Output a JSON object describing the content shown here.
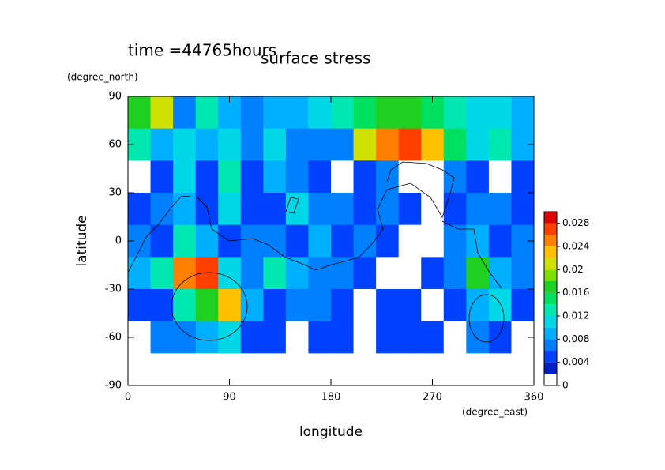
{
  "chart_data": {
    "type": "contour",
    "title": "surface stress",
    "subtitle": "time =44765hours",
    "xlabel": "longitude",
    "ylabel": "latitude",
    "xunit": "(degree_east)",
    "yunit": "(degree_north)",
    "xlim": [
      0,
      360
    ],
    "ylim": [
      -90,
      90
    ],
    "xticks": [
      0,
      90,
      180,
      270,
      360
    ],
    "yticks": [
      -90,
      -60,
      -30,
      0,
      30,
      60,
      90
    ],
    "x": [
      10,
      30,
      50,
      70,
      90,
      110,
      130,
      150,
      170,
      190,
      210,
      230,
      250,
      270,
      290,
      310,
      330,
      350
    ],
    "y": [
      80,
      60,
      40,
      20,
      0,
      -20,
      -40,
      -60,
      -80
    ],
    "z": [
      [
        0.016,
        0.02,
        0.006,
        0.012,
        0.008,
        0.006,
        0.008,
        0.008,
        0.01,
        0.012,
        0.014,
        0.016,
        0.016,
        0.014,
        0.012,
        0.01,
        0.01,
        0.008
      ],
      [
        0.012,
        0.008,
        0.01,
        0.008,
        0.01,
        0.006,
        0.01,
        0.006,
        0.006,
        0.006,
        0.02,
        0.024,
        0.026,
        0.022,
        0.014,
        0.01,
        0.012,
        0.008
      ],
      [
        0.001,
        0.004,
        0.01,
        0.004,
        0.012,
        0.004,
        0.008,
        0.006,
        0.004,
        0.001,
        0.004,
        0.006,
        0.001,
        0.001,
        0.006,
        0.004,
        0.001,
        0.004
      ],
      [
        0.004,
        0.006,
        0.008,
        0.004,
        0.01,
        0.004,
        0.004,
        0.01,
        0.006,
        0.006,
        0.004,
        0.006,
        0.004,
        0.001,
        0.004,
        0.006,
        0.006,
        0.004
      ],
      [
        0.006,
        0.004,
        0.012,
        0.008,
        0.004,
        0.006,
        0.006,
        0.004,
        0.008,
        0.004,
        0.006,
        0.004,
        0.001,
        0.001,
        0.006,
        0.008,
        0.004,
        0.006
      ],
      [
        0.008,
        0.012,
        0.024,
        0.026,
        0.01,
        0.006,
        0.012,
        0.008,
        0.006,
        0.006,
        0.004,
        0.001,
        0.001,
        0.004,
        0.006,
        0.016,
        0.008,
        0.006
      ],
      [
        0.004,
        0.004,
        0.012,
        0.016,
        0.022,
        0.008,
        0.004,
        0.006,
        0.006,
        0.004,
        0.001,
        0.004,
        0.004,
        0.001,
        0.004,
        0.008,
        0.01,
        0.004
      ],
      [
        0.001,
        0.006,
        0.006,
        0.008,
        0.01,
        0.004,
        0.004,
        0.001,
        0.004,
        0.004,
        0.001,
        0.004,
        0.004,
        0.004,
        0.001,
        0.006,
        0.004,
        0.001
      ],
      [
        0.001,
        0.001,
        0.001,
        0.001,
        0.001,
        0.001,
        0.001,
        0.001,
        0.001,
        0.001,
        0.001,
        0.001,
        0.001,
        0.001,
        0.001,
        0.001,
        0.001,
        0.001
      ]
    ],
    "levels": [
      0,
      0.002,
      0.004,
      0.006,
      0.008,
      0.01,
      0.012,
      0.014,
      0.016,
      0.018,
      0.02,
      0.022,
      0.024,
      0.026,
      0.028,
      0.03
    ],
    "colors": [
      "#ffffff",
      "#0020c8",
      "#0040ff",
      "#0080ff",
      "#00b0ff",
      "#00d8e8",
      "#00e8b0",
      "#00e060",
      "#20d020",
      "#80e000",
      "#d0e000",
      "#ffc000",
      "#ff8000",
      "#ff4000",
      "#e00000"
    ],
    "colorbar_ticks": [
      0,
      0.004,
      0.008,
      0.012,
      0.016,
      0.02,
      0.024,
      0.028
    ]
  }
}
